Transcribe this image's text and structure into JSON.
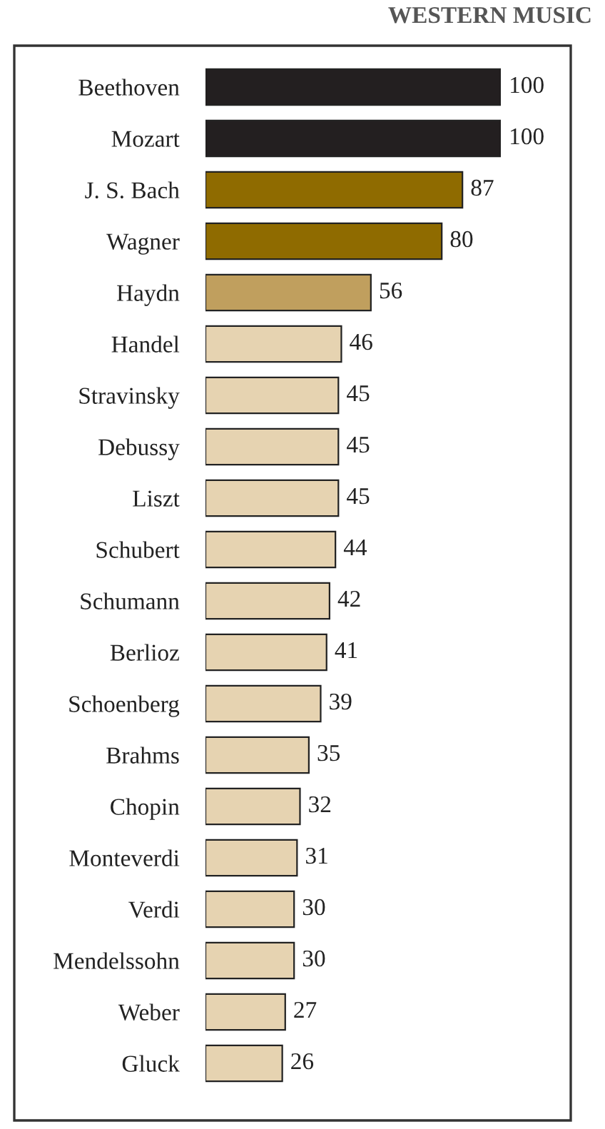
{
  "chart_data": {
    "type": "bar",
    "orientation": "horizontal",
    "title": "WESTERN MUSIC",
    "categories": [
      "Beethoven",
      "Mozart",
      "J. S. Bach",
      "Wagner",
      "Haydn",
      "Handel",
      "Stravinsky",
      "Debussy",
      "Liszt",
      "Schubert",
      "Schumann",
      "Berlioz",
      "Schoenberg",
      "Brahms",
      "Chopin",
      "Monteverdi",
      "Verdi",
      "Mendelssohn",
      "Weber",
      "Gluck"
    ],
    "values": [
      100,
      100,
      87,
      80,
      56,
      46,
      45,
      45,
      45,
      44,
      42,
      41,
      39,
      35,
      32,
      31,
      30,
      30,
      27,
      26
    ],
    "colors": [
      "#231f20",
      "#231f20",
      "#8f6b00",
      "#8f6b00",
      "#c09f5e",
      "#e6d3b1",
      "#e6d3b1",
      "#e6d3b1",
      "#e6d3b1",
      "#e6d3b1",
      "#e6d3b1",
      "#e6d3b1",
      "#e6d3b1",
      "#e6d3b1",
      "#e6d3b1",
      "#e6d3b1",
      "#e6d3b1",
      "#e6d3b1",
      "#e6d3b1",
      "#e6d3b1"
    ],
    "data_labels": true,
    "grid": false,
    "legend": false
  }
}
